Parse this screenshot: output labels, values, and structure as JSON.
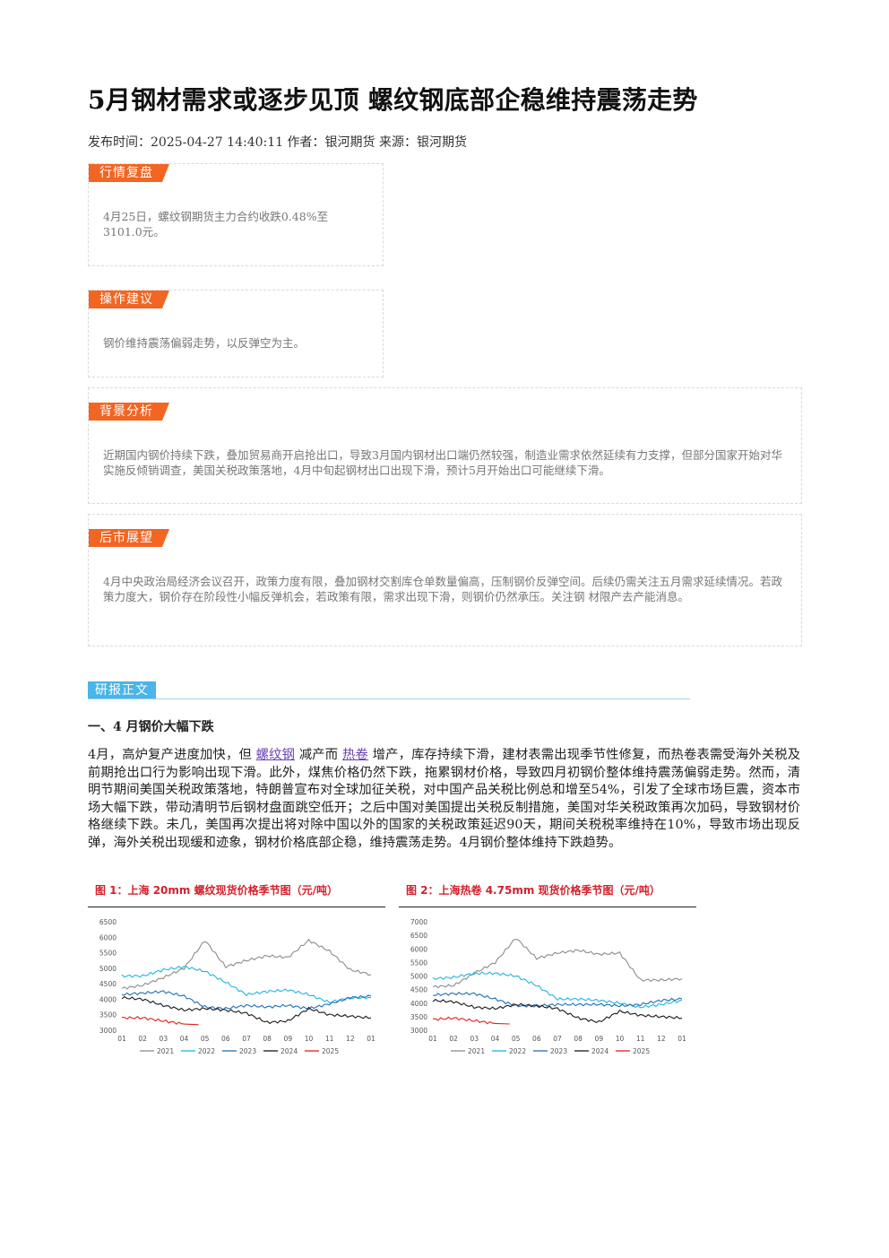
{
  "article": {
    "title": "5月钢材需求或逐步见顶 螺纹钢底部企稳维持震荡走势",
    "meta": "发布时间：2025-04-27 14:40:11 作者：银河期货 来源：银河期货"
  },
  "sections": {
    "market_review": {
      "tag": "行情复盘",
      "text": "4月25日，螺纹钢期货主力合约收跌0.48%至3101.0元。"
    },
    "operation": {
      "tag": "操作建议",
      "text": "钢价维持震荡偏弱走势，以反弹空为主。"
    },
    "background": {
      "tag": "背景分析",
      "text": "近期国内钢价持续下跌，叠加贸易商开启抢出口，导致3月国内钢材出口端仍然较强，制造业需求依然延续有力支撑，但部分国家开始对华实施反倾销调查，美国关税政策落地，4月中旬起钢材出口出现下滑，预计5月开始出口可能继续下滑。"
    },
    "outlook": {
      "tag": "后市展望",
      "text": "4月中央政治局经济会议召开，政策力度有限，叠加钢材交割库仓单数量偏高，压制钢价反弹空间。后续仍需关注五月需求延续情况。若政策力度大，钢价存在阶段性小幅反弹机会，若政策有限，需求出现下滑，则钢价仍然承压。关注钢 材限产去产能消息。"
    }
  },
  "report": {
    "tag": "研报正文",
    "heading": "一、4 月钢价大幅下跌",
    "para_1": "4月，高炉复产进度加快，但",
    "link_1": "螺纹钢",
    "para_2": "减产而",
    "link_2": "热卷",
    "para_3": "增产，库存持续下滑，建材表需出现季节性修复，而热卷表需受海外关税及前期抢出口行为影响出现下滑。此外，煤焦价格仍然下跌，拖累钢材价格，导致四月初钢价整体维持震荡偏弱走势。然而，清明节期间美国关税政策落地，特朗普宣布对全球加征关税，对中国产品关税比例总和增至54%，引发了全球市场巨震，资本市场大幅下跌，带动清明节后钢材盘面跳空低开；之后中国对美国提出关税反制措施，美国对华关税政策再次加码，导致钢材价格继续下跌。未几，美国再次提出将对除中国以外的国家的关税政策延迟90天，期间关税税率维持在10%，导致市场出现反弹，海外关税出现缓和迹象，钢材价格底部企稳，维持震荡走势。4月钢价整体维持下跌趋势。"
  },
  "chart_data": [
    {
      "type": "line",
      "title": "图 1：上海 20mm 螺纹现货价格季节图（元/吨）",
      "categories": [
        "01",
        "02",
        "03",
        "04",
        "05",
        "06",
        "07",
        "08",
        "09",
        "10",
        "11",
        "12",
        "01"
      ],
      "yticks": [
        3000,
        3500,
        4000,
        4500,
        5000,
        5500,
        6000,
        6500
      ],
      "ylim": [
        3000,
        6500
      ],
      "legend_position": "bottom",
      "series": [
        {
          "name": "2021",
          "color": "#8c8c8c",
          "values": [
            4350,
            4450,
            4700,
            5000,
            5900,
            5050,
            5250,
            5400,
            5350,
            5900,
            5550,
            4950,
            4800
          ]
        },
        {
          "name": "2022",
          "color": "#1fb5e0",
          "values": [
            4750,
            4750,
            4950,
            5050,
            4900,
            4550,
            4150,
            4250,
            4300,
            4150,
            3900,
            4050,
            4050
          ]
        },
        {
          "name": "2023",
          "color": "#1f6fb5",
          "values": [
            4150,
            4200,
            4250,
            4100,
            3750,
            3700,
            3800,
            3750,
            3800,
            3700,
            3850,
            4050,
            4100
          ]
        },
        {
          "name": "2024",
          "color": "#1a1a1a",
          "values": [
            4050,
            4000,
            3800,
            3650,
            3700,
            3650,
            3550,
            3250,
            3300,
            3700,
            3500,
            3450,
            3400
          ]
        },
        {
          "name": "2025",
          "color": "#e0201f",
          "values": [
            3400,
            3400,
            3300,
            3200,
            null,
            null,
            null,
            null,
            null,
            null,
            null,
            null,
            null
          ]
        }
      ]
    },
    {
      "type": "line",
      "title": "图 2：上海热卷 4.75mm 现货价格季节图（元/吨）",
      "categories": [
        "01",
        "02",
        "03",
        "04",
        "05",
        "06",
        "07",
        "08",
        "09",
        "10",
        "11",
        "12",
        "01"
      ],
      "yticks": [
        3000,
        3500,
        4000,
        4500,
        5000,
        5500,
        6000,
        6500,
        7000
      ],
      "ylim": [
        3000,
        7000
      ],
      "legend_position": "bottom",
      "series": [
        {
          "name": "2021",
          "color": "#8c8c8c",
          "values": [
            4600,
            4650,
            5100,
            5500,
            6400,
            5650,
            5850,
            5950,
            5800,
            5850,
            4850,
            4850,
            4900
          ]
        },
        {
          "name": "2022",
          "color": "#1fb5e0",
          "values": [
            4900,
            4950,
            5100,
            5100,
            5000,
            4650,
            4150,
            4150,
            4100,
            4000,
            3850,
            3950,
            4100
          ]
        },
        {
          "name": "2023",
          "color": "#1f6fb5",
          "values": [
            4300,
            4350,
            4350,
            4150,
            3900,
            3900,
            3950,
            3950,
            3950,
            3900,
            3950,
            4100,
            4150
          ]
        },
        {
          "name": "2024",
          "color": "#1a1a1a",
          "values": [
            4100,
            4050,
            3850,
            3800,
            3950,
            3900,
            3800,
            3450,
            3300,
            3700,
            3550,
            3500,
            3450
          ]
        },
        {
          "name": "2025",
          "color": "#e0201f",
          "values": [
            3400,
            3450,
            3350,
            3250,
            null,
            null,
            null,
            null,
            null,
            null,
            null,
            null,
            null
          ]
        }
      ]
    }
  ]
}
